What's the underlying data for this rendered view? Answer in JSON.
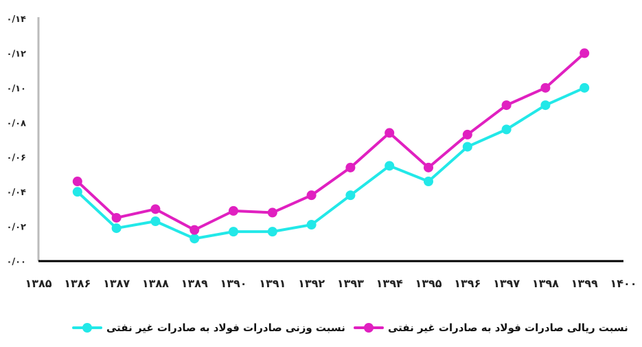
{
  "chart_data": {
    "type": "line",
    "title": "",
    "xlabel": "",
    "ylabel": "",
    "categories": [
      "۱۳۸۵",
      "۱۳۸۶",
      "۱۳۸۷",
      "۱۳۸۸",
      "۱۳۸۹",
      "۱۳۹۰",
      "۱۳۹۱",
      "۱۳۹۲",
      "۱۳۹۳",
      "۱۳۹۴",
      "۱۳۹۵",
      "۱۳۹۶",
      "۱۳۹۷",
      "۱۳۹۸",
      "۱۳۹۹",
      "۱۴۰۰"
    ],
    "x": [
      1385,
      1386,
      1387,
      1388,
      1389,
      1390,
      1391,
      1392,
      1393,
      1394,
      1395,
      1396,
      1397,
      1398,
      1399,
      1400
    ],
    "ylim": [
      0,
      0.14
    ],
    "yticks": [
      0,
      0.02,
      0.04,
      0.06,
      0.08,
      0.1,
      0.12,
      0.14
    ],
    "ytick_labels": [
      "۰/۰۰",
      "۰/۰۲",
      "۰/۰۴",
      "۰/۰۶",
      "۰/۰۸",
      "۰/۱۰",
      "۰/۱۲",
      "۰/۱۴"
    ],
    "grid": false,
    "legend_position": "bottom",
    "series": [
      {
        "name": "نسبت ریالی صادرات فولاد به صادرات غیر نفتی",
        "color": "#e020c0",
        "x": [
          1386,
          1387,
          1388,
          1389,
          1390,
          1391,
          1392,
          1393,
          1394,
          1395,
          1396,
          1397,
          1398,
          1399
        ],
        "values": [
          0.046,
          0.025,
          0.03,
          0.018,
          0.029,
          0.028,
          0.038,
          0.054,
          0.074,
          0.054,
          0.073,
          0.09,
          0.1,
          0.12
        ]
      },
      {
        "name": "نسبت وزنی صادرات فولاد به صادرات غیر نفتی",
        "color": "#22e8e8",
        "x": [
          1386,
          1387,
          1388,
          1389,
          1390,
          1391,
          1392,
          1393,
          1394,
          1395,
          1396,
          1397,
          1398,
          1399
        ],
        "values": [
          0.04,
          0.019,
          0.023,
          0.013,
          0.017,
          0.017,
          0.021,
          0.038,
          0.055,
          0.046,
          0.066,
          0.076,
          0.09,
          0.1
        ]
      }
    ]
  },
  "legend": {
    "rial": "نسبت ریالی صادرات فولاد به صادرات غیر نفتی",
    "weight": "نسبت وزنی صادرات فولاد به صادرات غیر نفتی"
  }
}
